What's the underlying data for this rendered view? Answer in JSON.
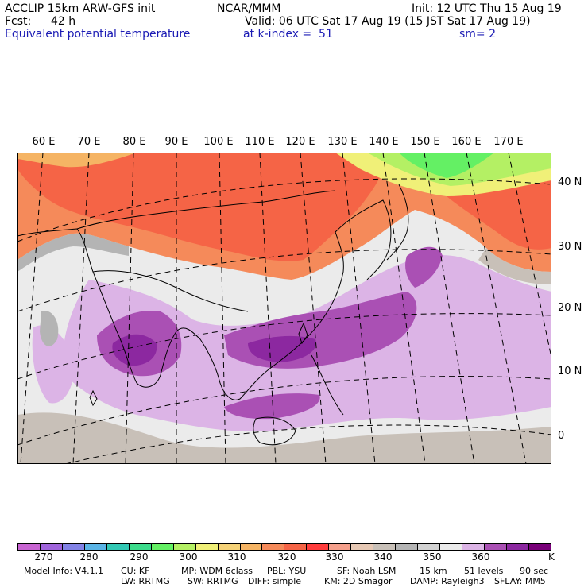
{
  "header": {
    "model": "ACCLIP 15km ARW-GFS init",
    "fcst_label": "Fcst:",
    "fcst_value": "42 h",
    "field": "Equivalent potential temperature",
    "org": "NCAR/MMM",
    "init": "Init: 12 UTC Thu 15 Aug 19",
    "valid": "Valid: 06 UTC Sat 17 Aug 19 (15 JST Sat 17 Aug 19)",
    "level": "at k-index =  51",
    "smoothing": "sm= 2"
  },
  "lon_labels": [
    "60 E",
    "70 E",
    "80 E",
    "90 E",
    "100 E",
    "110 E",
    "120 E",
    "130 E",
    "140 E",
    "150 E",
    "160 E",
    "170 E"
  ],
  "lat_labels": [
    "40 N",
    "30 N",
    "20 N",
    "10 N",
    "0"
  ],
  "colorbar": {
    "colors": [
      "#c864d2",
      "#a064dc",
      "#8282e6",
      "#5ab4e6",
      "#32c8b4",
      "#3cdc8c",
      "#64f064",
      "#b4f064",
      "#f0f078",
      "#f5d278",
      "#f5b464",
      "#f58a5a",
      "#f56446",
      "#ff3c3c",
      "#f5a08c",
      "#e6c8b4",
      "#c8c0b8",
      "#b4b4b4",
      "#d2d2d2",
      "#ebebeb",
      "#dcb4e6",
      "#aa50b4",
      "#8c28a0",
      "#780078"
    ],
    "tick_labels": [
      "270",
      "280",
      "290",
      "300",
      "310",
      "320",
      "330",
      "340",
      "350",
      "360"
    ],
    "unit": "K"
  },
  "model_info": {
    "line1": [
      "Model Info: V4.1.1",
      "CU: KF",
      "MP: WDM 6class",
      "PBL: YSU",
      "SF: Noah LSM",
      "15 km",
      "51 levels",
      "90 sec"
    ],
    "line2": [
      "LW: RRTMG",
      "SW: RRTMG",
      "DIFF: simple",
      "KM: 2D Smagor",
      "DAMP: Rayleigh3",
      "SFLAY: MM5"
    ]
  }
}
